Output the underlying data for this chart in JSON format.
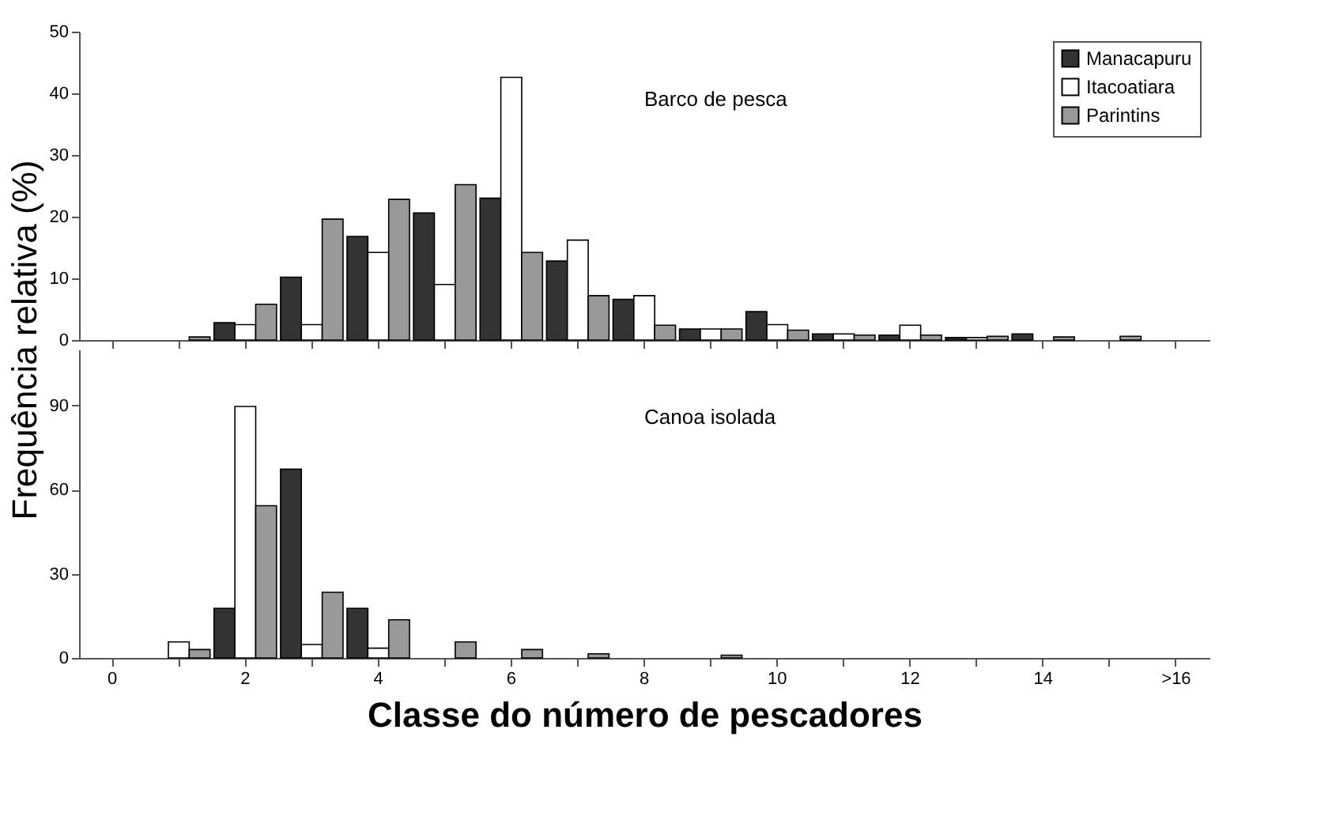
{
  "chart_data": [
    {
      "type": "bar",
      "ylabel": "Frequência relativa (%)",
      "series": [
        {
          "name": "Manacapuru",
          "color": "#333333",
          "values": [
            null,
            null,
            2.8,
            10.2,
            16.8,
            20.6,
            23,
            12.8,
            6.6,
            1.8,
            4.6,
            1,
            0.8,
            0.4,
            1,
            null,
            null
          ]
        },
        {
          "name": "Itacoatiara",
          "color": "#ffffff",
          "values": [
            null,
            null,
            2.5,
            2.5,
            14.2,
            9,
            42.6,
            16.2,
            7.2,
            1.8,
            2.5,
            1,
            2.4,
            0.4,
            null,
            null,
            null
          ]
        },
        {
          "name": "Parintins",
          "color": "#999999",
          "values": [
            null,
            0.5,
            5.8,
            19.6,
            22.8,
            25.2,
            14.2,
            7.2,
            2.4,
            1.8,
            1.6,
            0.8,
            0.8,
            0.6,
            0.5,
            0.6,
            null
          ]
        }
      ],
      "ylim": [
        0,
        50
      ],
      "yticks": [
        0,
        10,
        20,
        30,
        40,
        50
      ],
      "legend": "top right",
      "tick_labels": "y",
      "annotations": [
        "Barco de pesca"
      ]
    },
    {
      "type": "bar",
      "xlabel": "Classe do número de pescadores",
      "categories": [
        "0",
        null,
        "2",
        null,
        "4",
        null,
        "6",
        null,
        "8",
        null,
        "10",
        null,
        "12",
        null,
        "14",
        null,
        ">16"
      ],
      "series": [
        {
          "name": "Manacapuru",
          "color": "#333333",
          "values": [
            null,
            null,
            17.7,
            67.3,
            17.7,
            null,
            null,
            null,
            null,
            null,
            null,
            null,
            null,
            null,
            null,
            null,
            null
          ]
        },
        {
          "name": "Itacoatiara",
          "color": "#ffffff",
          "values": [
            null,
            5.7,
            89.7,
            4.8,
            3.5,
            null,
            null,
            null,
            null,
            null,
            null,
            null,
            null,
            null,
            null,
            null,
            null
          ]
        },
        {
          "name": "Parintins",
          "color": "#999999",
          "values": [
            null,
            3,
            54.3,
            23.4,
            13.6,
            5.7,
            3,
            1.5,
            null,
            1,
            null,
            null,
            null,
            null,
            null,
            null,
            null
          ]
        }
      ],
      "ylim": [
        0,
        110
      ],
      "yticks": [
        0,
        30,
        60,
        90
      ],
      "annotations": [
        "Canoa isolada"
      ]
    }
  ]
}
